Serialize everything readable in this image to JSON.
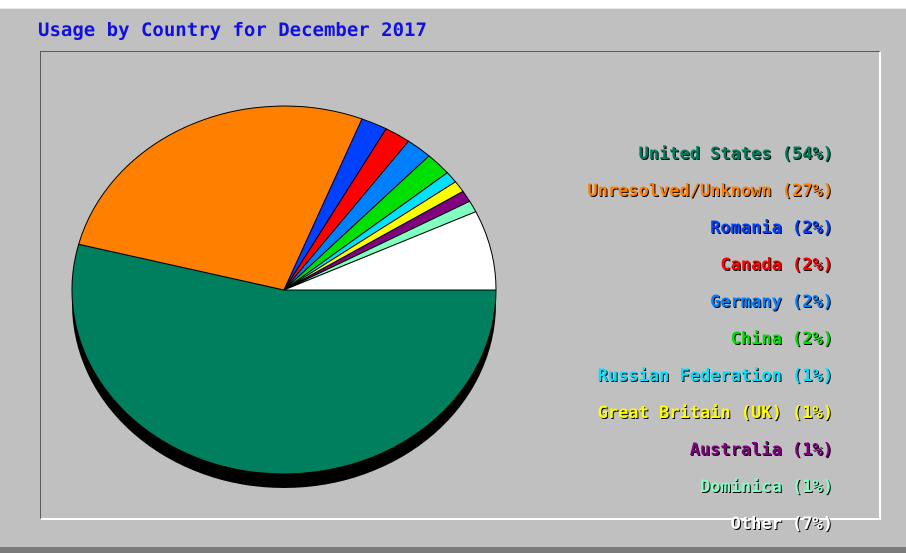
{
  "chart_data": {
    "type": "pie",
    "title": "Usage by Country for December 2017",
    "slices": [
      {
        "label": "United States (54%)",
        "value": 54,
        "color": "#007f5f"
      },
      {
        "label": "Unresolved/Unknown (27%)",
        "value": 27,
        "color": "#ff8000"
      },
      {
        "label": "Romania (2%)",
        "value": 2,
        "color": "#0040ff"
      },
      {
        "label": "Canada (2%)",
        "value": 2,
        "color": "#ff0000"
      },
      {
        "label": "Germany (2%)",
        "value": 2,
        "color": "#0080ff"
      },
      {
        "label": "China (2%)",
        "value": 2,
        "color": "#00e000"
      },
      {
        "label": "Russian Federation (1%)",
        "value": 1,
        "color": "#00e0ff"
      },
      {
        "label": "Great Britain (UK) (1%)",
        "value": 1,
        "color": "#ffff00"
      },
      {
        "label": "Australia (1%)",
        "value": 1,
        "color": "#800080"
      },
      {
        "label": "Dominica (1%)",
        "value": 1,
        "color": "#80ffc0"
      },
      {
        "label": "Other (7%)",
        "value": 7,
        "color": "#ffffff"
      }
    ],
    "legend_position": "right"
  }
}
